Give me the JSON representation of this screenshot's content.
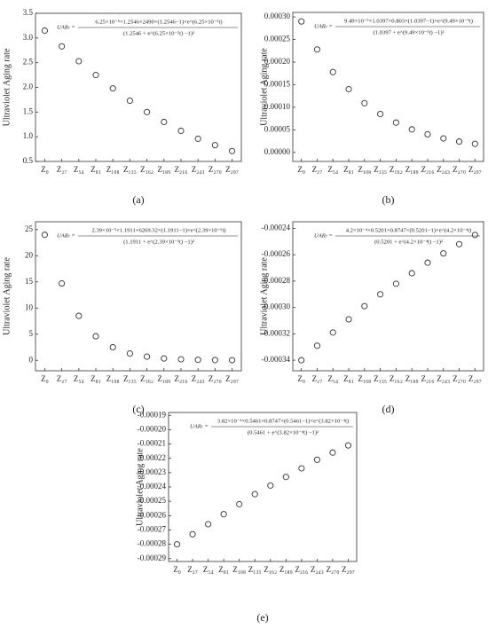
{
  "chart_data": [
    {
      "type": "scatter",
      "caption": "(a)",
      "y_label": "Ultraviolet Aging rate",
      "formula": {
        "lhs": "UARₜ =",
        "numerator": "6.25×10⁻⁵×1.2546×2490×(1.2546−1)×e^(6.25×10⁻⁵t)",
        "denominator": "(1.2546 + e^(6.25×10⁻⁵t) −1)²"
      },
      "categories": [
        "Z₀",
        "Z₂₇",
        "Z₅₄",
        "Z₈₁",
        "Z₁₀₈",
        "Z₁₃₅",
        "Z₁₆₂",
        "Z₁₈₉",
        "Z₂₁₆",
        "Z₂₄₃",
        "Z₂₇₀",
        "Z₂₉₇"
      ],
      "values": [
        3.15,
        2.83,
        2.53,
        2.25,
        1.98,
        1.73,
        1.5,
        1.3,
        1.12,
        0.96,
        0.83,
        0.71
      ],
      "ylim": [
        0.5,
        3.5
      ],
      "yticks": [
        0.5,
        {
          "value": 1,
          "label": "1.0"
        },
        1.5,
        {
          "value": 2,
          "label": "2.0"
        },
        2.5,
        {
          "value": 3,
          "label": "3.0"
        },
        3.5
      ]
    },
    {
      "type": "scatter",
      "caption": "(b)",
      "y_label": "Ultraviolet Aging rate",
      "formula": {
        "lhs": "UARₜ =",
        "numerator": "9.49×10⁻⁵×1.0397×0.803×(1.0397−1)×e^(9.49×10⁻⁵t)",
        "denominator": "(1.0397 + e^(9.49×10⁻⁵t) −1)²"
      },
      "categories": [
        "Z₀",
        "Z₂₇",
        "Z₅₄",
        "Z₈₁",
        "Z₁₀₈",
        "Z₁₃₅",
        "Z₁₆₂",
        "Z₁₈₉",
        "Z₂₁₆",
        "Z₂₄₃",
        "Z₂₇₀",
        "Z₂₉₇"
      ],
      "values": [
        0.00029,
        0.000228,
        0.000178,
        0.00014,
        0.000109,
        8.5e-05,
        6.6e-05,
        5.1e-05,
        4e-05,
        3.1e-05,
        2.4e-05,
        1.9e-05
      ],
      "ylim": [
        -2e-05,
        0.00031
      ],
      "yticks": [
        {
          "value": 0,
          "label": "0.00000"
        },
        5e-05,
        {
          "value": 0.0001,
          "label": "0.00010"
        },
        0.00015,
        {
          "value": 0.0002,
          "label": "0.00020"
        },
        0.00025,
        {
          "value": 0.0003,
          "label": "0.00030"
        }
      ]
    },
    {
      "type": "scatter",
      "caption": "(c)",
      "y_label": "Ultraviolet Aging rate",
      "formula": {
        "lhs": "UARₜ =",
        "numerator": "2.39×10⁻⁵×1.1911×6269.32×(1.1911−1)×e^(2.39×10⁻⁵t)",
        "denominator": "(1.1911 + e^(2.39×10⁻⁵t) −1)²"
      },
      "categories": [
        "Z₀",
        "Z₂₇",
        "Z₅₄",
        "Z₈₁",
        "Z₁₀₈",
        "Z₁₃₅",
        "Z₁₆₂",
        "Z₁₈₉",
        "Z₂₁₆",
        "Z₂₄₃",
        "Z₂₇₀",
        "Z₂₉₇"
      ],
      "values": [
        24,
        14.7,
        8.5,
        4.6,
        2.5,
        1.3,
        0.7,
        0.35,
        0.2,
        0.1,
        0.05,
        0.03
      ],
      "ylim": [
        -2,
        26.5
      ],
      "yticks": [
        0,
        5,
        10,
        15,
        20,
        25
      ]
    },
    {
      "type": "scatter",
      "caption": "(d)",
      "y_label": "Ultraviolet Aging rate",
      "formula": {
        "lhs": "UARₜ =",
        "numerator": "4.2×10⁻⁴×0.5201×0.8747×(0.5201−1)×e^(4.2×10⁻⁴t)",
        "denominator": "(0.5201 + e^(4.2×10⁻⁴t) −1)²"
      },
      "categories": [
        "Z₀",
        "Z₂₇",
        "Z₅₄",
        "Z₈₁",
        "Z₁₀₈",
        "Z₁₃₅",
        "Z₁₆₂",
        "Z₁₈₉",
        "Z₂₁₆",
        "Z₂₄₃",
        "Z₂₇₀",
        "Z₂₉₇"
      ],
      "values": [
        -0.00034,
        -0.000329,
        -0.000319,
        -0.000309,
        -0.000299,
        -0.00029,
        -0.000282,
        -0.000274,
        -0.000266,
        -0.000259,
        -0.000252,
        -0.000245
      ],
      "ylim": [
        -0.000348,
        -0.000235
      ],
      "yticks": [
        -0.00034,
        -0.00032,
        {
          "value": -0.0003,
          "label": "-0.00030"
        },
        -0.00028,
        -0.00026,
        -0.00024
      ]
    },
    {
      "type": "scatter",
      "caption": "(e)",
      "y_label": "Ultraviolet Aging rate",
      "formula": {
        "lhs": "UARₜ =",
        "numerator": "3.82×10⁻⁴×0.5461×0.8747×(0.5461−1)×e^(3.82×10⁻⁴t)",
        "denominator": "(0.5461 + e^(3.82×10⁻⁴t) −1)²"
      },
      "categories": [
        "Z₀",
        "Z₂₇",
        "Z₅₄",
        "Z₈₁",
        "Z₁₀₈",
        "Z₁₃₅",
        "Z₁₆₂",
        "Z₁₈₉",
        "Z₂₁₆",
        "Z₂₄₃",
        "Z₂₇₀",
        "Z₂₉₇"
      ],
      "values": [
        -0.00028,
        -0.000273,
        -0.000266,
        -0.000259,
        -0.000252,
        -0.000245,
        -0.000239,
        -0.000233,
        -0.000227,
        -0.000221,
        -0.000216,
        -0.000211
      ],
      "ylim": [
        -0.000292,
        -0.000188
      ],
      "yticks": [
        -0.00029,
        -0.00028,
        -0.00027,
        -0.00026,
        -0.00025,
        -0.00024,
        -0.00023,
        -0.00022,
        -0.00021,
        {
          "value": -0.0002,
          "label": "-0.00020"
        },
        -0.00019
      ]
    }
  ]
}
